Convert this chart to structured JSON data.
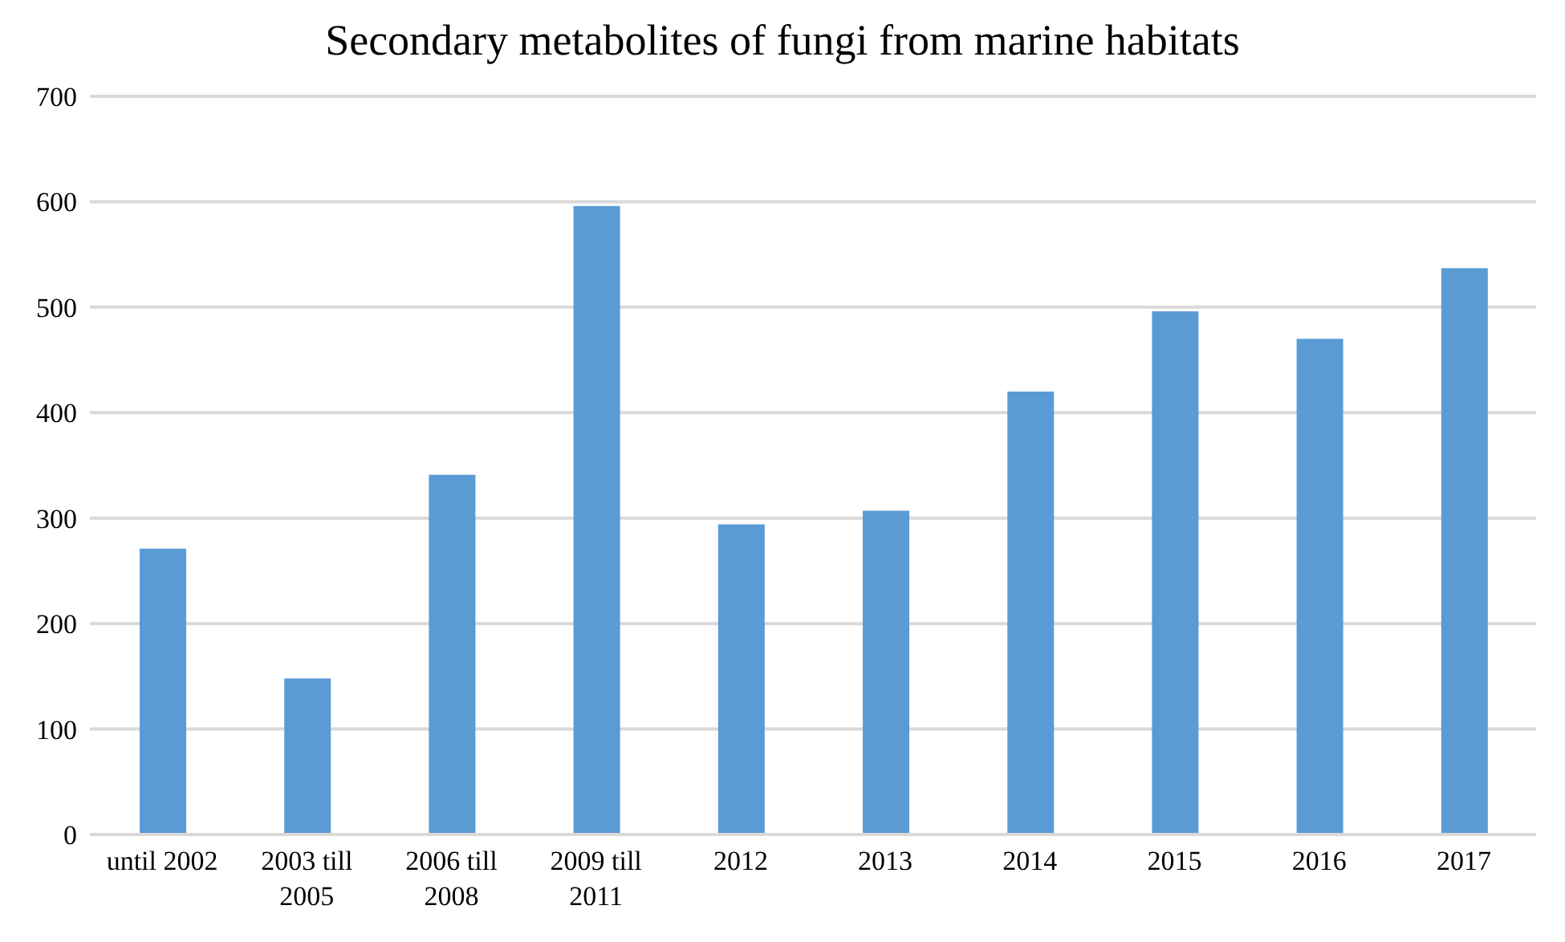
{
  "chart_data": {
    "type": "bar",
    "title": "Secondary metabolites of fungi from marine habitats",
    "categories": [
      "until 2002",
      "2003 till 2005",
      "2006 till 2008",
      "2009 till 2011",
      "2012",
      "2013",
      "2014",
      "2015",
      "2016",
      "2017"
    ],
    "values": [
      271,
      148,
      341,
      596,
      294,
      307,
      420,
      496,
      470,
      537
    ],
    "color": "#5b9bd5",
    "ylim": [
      0,
      700
    ],
    "yticks": [
      0,
      100,
      200,
      300,
      400,
      500,
      600,
      700
    ],
    "grid": "y"
  }
}
